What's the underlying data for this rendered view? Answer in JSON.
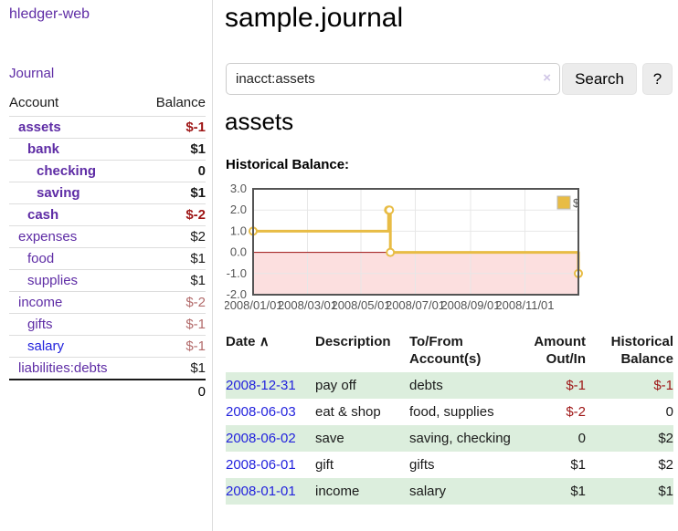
{
  "sidebar": {
    "brand": "hledger-web",
    "journal_label": "Journal",
    "table": {
      "headers": [
        "Account",
        "Balance"
      ],
      "rows": [
        {
          "account": "assets",
          "balance": "$-1",
          "depth": 1,
          "bold": true,
          "balance_color": "neg-strong",
          "link_color": "purple"
        },
        {
          "account": "bank",
          "balance": "$1",
          "depth": 2,
          "bold": true,
          "balance_color": "normal",
          "link_color": "purple"
        },
        {
          "account": "checking",
          "balance": "0",
          "depth": 3,
          "bold": true,
          "balance_color": "normal",
          "link_color": "purple"
        },
        {
          "account": "saving",
          "balance": "$1",
          "depth": 3,
          "bold": true,
          "balance_color": "normal",
          "link_color": "purple"
        },
        {
          "account": "cash",
          "balance": "$-2",
          "depth": 2,
          "bold": true,
          "balance_color": "neg-strong",
          "link_color": "purple"
        },
        {
          "account": "expenses",
          "balance": "$2",
          "depth": 1,
          "bold": false,
          "balance_color": "normal",
          "link_color": "purple"
        },
        {
          "account": "food",
          "balance": "$1",
          "depth": 2,
          "bold": false,
          "balance_color": "normal",
          "link_color": "purple"
        },
        {
          "account": "supplies",
          "balance": "$1",
          "depth": 2,
          "bold": false,
          "balance_color": "normal",
          "link_color": "purple"
        },
        {
          "account": "income",
          "balance": "$-2",
          "depth": 1,
          "bold": false,
          "balance_color": "neg-soft",
          "link_color": "purple"
        },
        {
          "account": "gifts",
          "balance": "$-1",
          "depth": 2,
          "bold": false,
          "balance_color": "neg-soft",
          "link_color": "purple"
        },
        {
          "account": "salary",
          "balance": "$-1",
          "depth": 2,
          "bold": false,
          "balance_color": "neg-soft",
          "link_color": "blue"
        },
        {
          "account": "liabilities:debts",
          "balance": "$1",
          "depth": 1,
          "bold": false,
          "balance_color": "normal",
          "link_color": "purple"
        }
      ],
      "total": "0"
    }
  },
  "header": {
    "title": "sample.journal"
  },
  "search": {
    "query": "inacct:assets",
    "clear_icon": "×",
    "button_label": "Search",
    "help_label": "?"
  },
  "account_page": {
    "heading": "assets",
    "chart_label": "Historical Balance:"
  },
  "chart_data": {
    "type": "line",
    "step": true,
    "title": "Historical Balance:",
    "legend": [
      {
        "label": "$",
        "color": "#e8bc45"
      }
    ],
    "legend_position": "top-right",
    "x_unit": "days since 2008-01-01",
    "points": [
      {
        "date": "2008-01-01",
        "day": 0,
        "value": 1
      },
      {
        "date": "2008-06-01",
        "day": 152,
        "value": 2
      },
      {
        "date": "2008-06-02",
        "day": 153,
        "value": 2
      },
      {
        "date": "2008-06-03",
        "day": 154,
        "value": 0
      },
      {
        "date": "2008-12-31",
        "day": 365,
        "value": -1
      }
    ],
    "xlim": [
      0,
      365
    ],
    "ylim": [
      -2,
      3
    ],
    "grid": true,
    "yticks": [
      {
        "label": "3.0",
        "value": 3
      },
      {
        "label": "2.0",
        "value": 2
      },
      {
        "label": "1.0",
        "value": 1
      },
      {
        "label": "0.0",
        "value": 0
      },
      {
        "label": "-1.0",
        "value": -1
      },
      {
        "label": "-2.0",
        "value": -2
      }
    ],
    "xticks": [
      {
        "label": "2008/01/01",
        "day": 0
      },
      {
        "label": "2008/03/01",
        "day": 61
      },
      {
        "label": "2008/05/01",
        "day": 121
      },
      {
        "label": "2008/07/01",
        "day": 182
      },
      {
        "label": "2008/09/01",
        "day": 244
      },
      {
        "label": "2008/11/01",
        "day": 305
      }
    ],
    "colors": {
      "series": "#e8bc45",
      "marker_fill": "#ffffff",
      "negative_region": "#fcdfdf",
      "zero_line": "#9f1010",
      "gridline": "#e7e7e7",
      "plot_border": "#545454",
      "tick_text": "#545454"
    }
  },
  "register": {
    "headers": [
      "Date",
      "Description",
      "To/From Account(s)",
      "Amount Out/In",
      "Historical Balance"
    ],
    "sort_indicator": "∧",
    "rows": [
      {
        "date": "2008-12-31",
        "description": "pay off",
        "accounts": "debts",
        "amount": "$-1",
        "amount_negative": true,
        "balance": "$-1",
        "balance_negative": true
      },
      {
        "date": "2008-06-03",
        "description": "eat & shop",
        "accounts": "food, supplies",
        "amount": "$-2",
        "amount_negative": true,
        "balance": "0",
        "balance_negative": false
      },
      {
        "date": "2008-06-02",
        "description": "save",
        "accounts": "saving, checking",
        "amount": "0",
        "amount_negative": false,
        "balance": "$2",
        "balance_negative": false
      },
      {
        "date": "2008-06-01",
        "description": "gift",
        "accounts": "gifts",
        "amount": "$1",
        "amount_negative": false,
        "balance": "$2",
        "balance_negative": false
      },
      {
        "date": "2008-01-01",
        "description": "income",
        "accounts": "salary",
        "amount": "$1",
        "amount_negative": false,
        "balance": "$1",
        "balance_negative": false
      }
    ]
  }
}
